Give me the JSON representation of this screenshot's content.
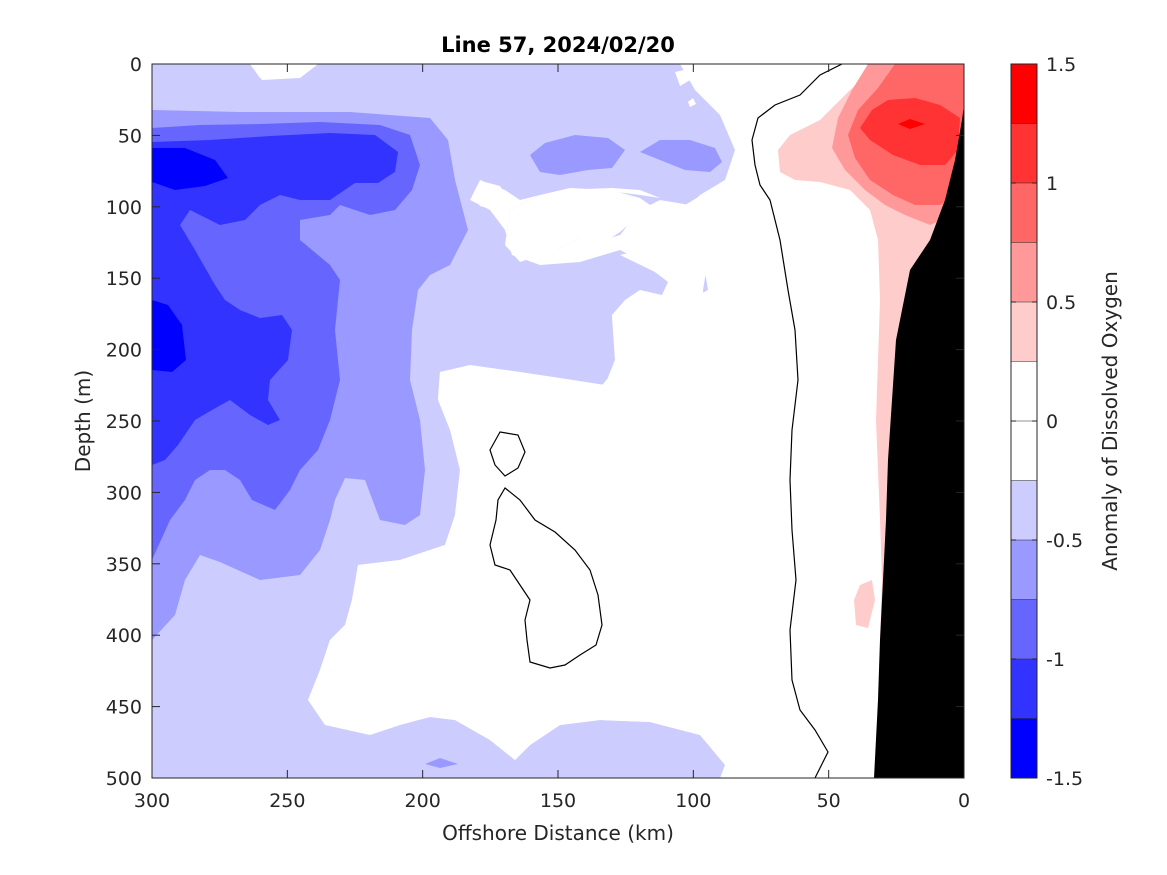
{
  "chart_data": {
    "type": "heatmap",
    "title": "Line 57, 2024/02/20",
    "xlabel": "Offshore Distance (km)",
    "ylabel": "Depth (m)",
    "colorbar_label": "Anomaly of Dissolved Oxygen",
    "xlim": [
      300,
      0
    ],
    "ylim": [
      500,
      0
    ],
    "x_ticks": [
      "300",
      "250",
      "200",
      "150",
      "100",
      "50",
      "0"
    ],
    "y_ticks": [
      "0",
      "50",
      "100",
      "150",
      "200",
      "250",
      "300",
      "350",
      "400",
      "450",
      "500"
    ],
    "colorbar_ticks": [
      "1.5",
      "1",
      "0.5",
      "0",
      "-0.5",
      "-1",
      "-1.5"
    ],
    "colorbar_range": [
      -1.5,
      1.5
    ],
    "contour_levels": [
      {
        "min": -1.5,
        "max": -1.25,
        "color": "#0000ff"
      },
      {
        "min": -1.25,
        "max": -1.0,
        "color": "#3333ff"
      },
      {
        "min": -1.0,
        "max": -0.75,
        "color": "#6666ff"
      },
      {
        "min": -0.75,
        "max": -0.5,
        "color": "#9999ff"
      },
      {
        "min": -0.5,
        "max": -0.25,
        "color": "#ccccff"
      },
      {
        "min": -0.25,
        "max": 0.0,
        "color": "#ffffff"
      },
      {
        "min": 0.0,
        "max": 0.25,
        "color": "#ffffff"
      },
      {
        "min": 0.25,
        "max": 0.5,
        "color": "#ffcccc"
      },
      {
        "min": 0.5,
        "max": 0.75,
        "color": "#ff9999"
      },
      {
        "min": 0.75,
        "max": 1.0,
        "color": "#ff6666"
      },
      {
        "min": 1.0,
        "max": 1.25,
        "color": "#ff3333"
      },
      {
        "min": 1.25,
        "max": 1.5,
        "color": "#ff0000"
      }
    ],
    "zero_contour_line": true,
    "bathymetry_color": "#000000",
    "grid": false
  }
}
